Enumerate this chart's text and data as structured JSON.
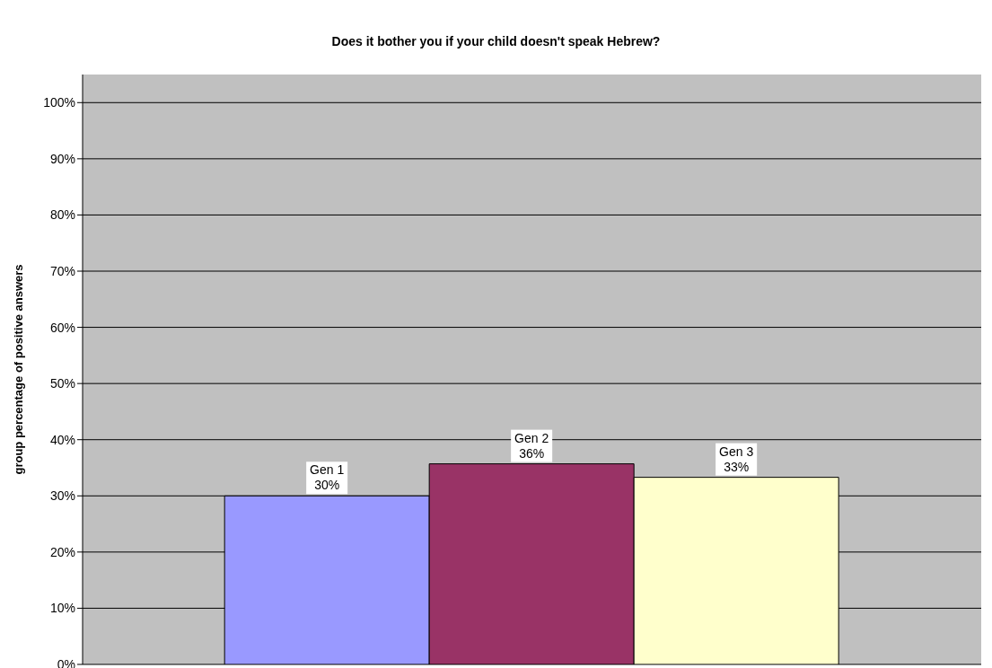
{
  "chart_data": {
    "type": "bar",
    "title": "Does it bother you if your child doesn't speak Hebrew?",
    "ylabel": "group percentage of positive answers",
    "categories": [
      null
    ],
    "series": [
      {
        "name": "Gen 1",
        "color": "#9999ff",
        "values": [
          30
        ],
        "value_labels": [
          "30%"
        ]
      },
      {
        "name": "Gen 2",
        "color": "#993366",
        "values": [
          35.7
        ],
        "value_labels": [
          "36%"
        ]
      },
      {
        "name": "Gen 3",
        "color": "#ffffcc",
        "values": [
          33.3
        ],
        "value_labels": [
          "33%"
        ]
      }
    ],
    "ylim": [
      0,
      105
    ],
    "yticks": [
      {
        "value": 0,
        "label": "0%"
      },
      {
        "value": 10,
        "label": "10%"
      },
      {
        "value": 20,
        "label": "20%"
      },
      {
        "value": 30,
        "label": "30%"
      },
      {
        "value": 40,
        "label": "40%"
      },
      {
        "value": 50,
        "label": "50%"
      },
      {
        "value": 60,
        "label": "60%"
      },
      {
        "value": 70,
        "label": "70%"
      },
      {
        "value": 80,
        "label": "80%"
      },
      {
        "value": 90,
        "label": "90%"
      },
      {
        "value": 100,
        "label": "100%"
      }
    ],
    "grid": "y",
    "legend": false,
    "tick_labels": "y"
  }
}
